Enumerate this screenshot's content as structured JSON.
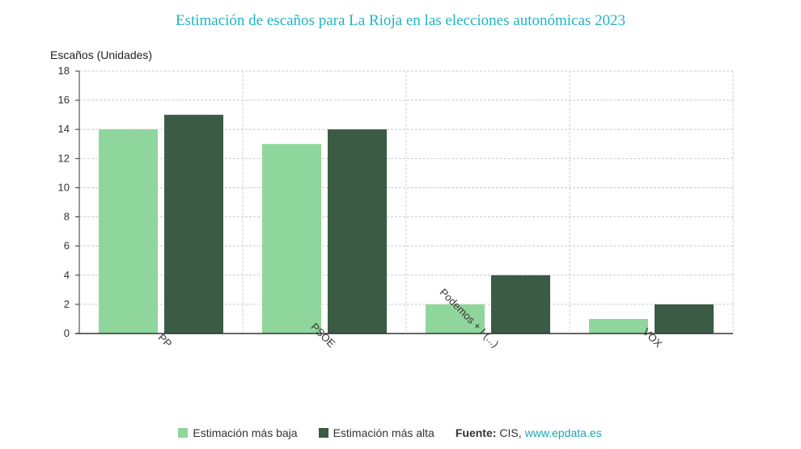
{
  "chart_data": {
    "type": "bar",
    "title": "Estimación de escaños para La Rioja en las elecciones autonómicas 2023",
    "ylabel": "Escaños (Unidades)",
    "xlabel": "",
    "categories": [
      "PP",
      "PSOE",
      "Podemos + I (...)",
      "VOX"
    ],
    "series": [
      {
        "name": "Estimación más baja",
        "color": "#8fd69c",
        "values": [
          14,
          13,
          2,
          1
        ]
      },
      {
        "name": "Estimación más alta",
        "color": "#3b5b45",
        "values": [
          15,
          14,
          4,
          2
        ]
      }
    ],
    "ylim": [
      0,
      18
    ],
    "yticks": [
      0,
      2,
      4,
      6,
      8,
      10,
      12,
      14,
      16,
      18
    ],
    "grid": true
  },
  "source": {
    "label": "Fuente:",
    "name": "CIS,",
    "link": "www.epdata.es"
  }
}
